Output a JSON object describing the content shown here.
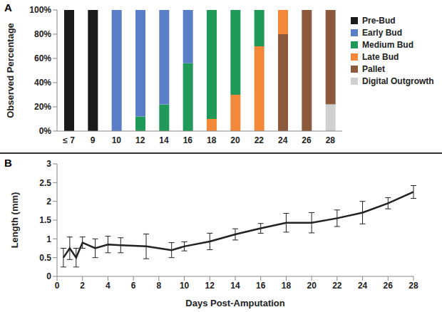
{
  "chart_data": [
    {
      "type": "bar",
      "title": "A",
      "stacked": true,
      "legend": "right",
      "grid": false,
      "ylabel": "Observed Percentage",
      "categories": [
        "≤ 7",
        "9",
        "10",
        "12",
        "14",
        "16",
        "18",
        "20",
        "22",
        "24",
        "26",
        "28"
      ],
      "ylim": [
        0,
        100
      ],
      "yticks": [
        {
          "value": 0,
          "label": "0%"
        },
        {
          "value": 20,
          "label": "20%"
        },
        {
          "value": 40,
          "label": "40%"
        },
        {
          "value": 60,
          "label": "60%"
        },
        {
          "value": 80,
          "label": "80%"
        },
        {
          "value": 100,
          "label": "100%"
        }
      ],
      "series": [
        {
          "name": "Pre-Bud",
          "color": "#1a1a1a",
          "values": [
            100,
            100,
            0,
            0,
            0,
            0,
            0,
            0,
            0,
            0,
            0,
            0
          ]
        },
        {
          "name": "Early Bud",
          "color": "#5a7ec8",
          "values": [
            0,
            0,
            100,
            88,
            78,
            44,
            0,
            0,
            0,
            0,
            0,
            0
          ]
        },
        {
          "name": "Medium Bud",
          "color": "#1f9a58",
          "values": [
            0,
            0,
            0,
            12,
            22,
            56,
            90,
            70,
            30,
            0,
            0,
            0
          ]
        },
        {
          "name": "Late Bud",
          "color": "#f4883a",
          "values": [
            0,
            0,
            0,
            0,
            0,
            0,
            10,
            30,
            70,
            20,
            0,
            0
          ]
        },
        {
          "name": "Pallet",
          "color": "#8b5a3c",
          "values": [
            0,
            0,
            0,
            0,
            0,
            0,
            0,
            0,
            0,
            80,
            100,
            78
          ]
        },
        {
          "name": "Digital Outgrowth",
          "color": "#d0d0d0",
          "values": [
            0,
            0,
            0,
            0,
            0,
            0,
            0,
            0,
            0,
            0,
            0,
            22
          ]
        }
      ]
    },
    {
      "type": "line",
      "title": "B",
      "grid": false,
      "xlabel": "Days Post-Amputation",
      "ylabel": "Length (mm)",
      "x": [
        0.5,
        1,
        1.5,
        2,
        3,
        4,
        5,
        7,
        9,
        10,
        12,
        14,
        16,
        18,
        20,
        22,
        24,
        26,
        28
      ],
      "values": [
        0.5,
        0.75,
        0.5,
        0.9,
        0.75,
        0.85,
        0.83,
        0.8,
        0.7,
        0.8,
        0.93,
        1.12,
        1.28,
        1.43,
        1.43,
        1.55,
        1.7,
        1.95,
        2.25
      ],
      "error": [
        0.25,
        0.3,
        0.25,
        0.15,
        0.25,
        0.22,
        0.2,
        0.33,
        0.2,
        0.12,
        0.22,
        0.15,
        0.13,
        0.25,
        0.27,
        0.22,
        0.3,
        0.15,
        0.17
      ],
      "color": "#222222",
      "xlim": [
        0,
        28
      ],
      "xticks": [
        0,
        2,
        4,
        6,
        8,
        10,
        12,
        14,
        16,
        18,
        20,
        22,
        24,
        26,
        28
      ],
      "ylim": [
        0,
        3
      ],
      "yticks": [
        0,
        0.5,
        1,
        1.5,
        2,
        2.5,
        3
      ]
    }
  ]
}
